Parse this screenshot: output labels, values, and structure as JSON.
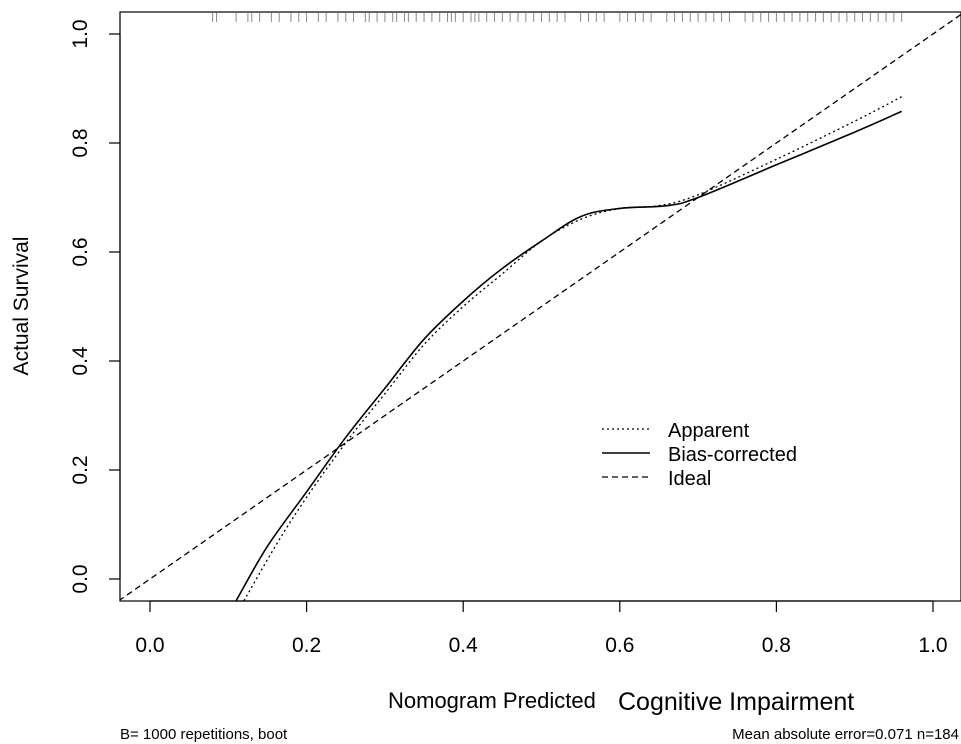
{
  "chart_data": {
    "type": "line",
    "xlabel": "Nomogram Predicted",
    "xlabel_suffix": "Cognitive Impairment",
    "ylabel": "Actual Survival",
    "xlim": [
      -0.04,
      1.04
    ],
    "ylim": [
      -0.04,
      1.04
    ],
    "x_ticks": [
      0.0,
      0.2,
      0.4,
      0.6,
      0.8,
      1.0
    ],
    "x_tick_labels": [
      "0.0",
      "0.2",
      "0.4",
      "0.6",
      "0.8",
      "1.0"
    ],
    "y_ticks": [
      0.0,
      0.2,
      0.4,
      0.6,
      0.8,
      1.0
    ],
    "y_tick_labels": [
      "0.0",
      "0.2",
      "0.4",
      "0.6",
      "0.8",
      "1.0"
    ],
    "grid": false,
    "legend_position": "center-right",
    "footnote_left": "B= 1000 repetitions, boot",
    "footnote_right": "Mean absolute error=0.071 n=184",
    "series": [
      {
        "name": "Apparent",
        "style": "dotted",
        "color": "#000000",
        "points": [
          [
            0.12,
            -0.04
          ],
          [
            0.16,
            0.06
          ],
          [
            0.2,
            0.15
          ],
          [
            0.25,
            0.25
          ],
          [
            0.3,
            0.34
          ],
          [
            0.35,
            0.43
          ],
          [
            0.4,
            0.5
          ],
          [
            0.45,
            0.56
          ],
          [
            0.5,
            0.62
          ],
          [
            0.55,
            0.66
          ],
          [
            0.6,
            0.68
          ],
          [
            0.65,
            0.685
          ],
          [
            0.7,
            0.705
          ],
          [
            0.8,
            0.77
          ],
          [
            0.9,
            0.84
          ],
          [
            0.96,
            0.885
          ]
        ]
      },
      {
        "name": "Bias-corrected",
        "style": "solid",
        "color": "#000000",
        "points": [
          [
            0.11,
            -0.04
          ],
          [
            0.15,
            0.06
          ],
          [
            0.2,
            0.16
          ],
          [
            0.25,
            0.26
          ],
          [
            0.3,
            0.35
          ],
          [
            0.35,
            0.44
          ],
          [
            0.4,
            0.51
          ],
          [
            0.45,
            0.57
          ],
          [
            0.5,
            0.62
          ],
          [
            0.55,
            0.665
          ],
          [
            0.6,
            0.68
          ],
          [
            0.66,
            0.685
          ],
          [
            0.7,
            0.7
          ],
          [
            0.8,
            0.76
          ],
          [
            0.9,
            0.82
          ],
          [
            0.96,
            0.858
          ]
        ]
      },
      {
        "name": "Ideal",
        "style": "dashed",
        "color": "#000000",
        "points": [
          [
            -0.04,
            -0.04
          ],
          [
            1.04,
            1.04
          ]
        ]
      }
    ],
    "rug_x": [
      0.08,
      0.085,
      0.11,
      0.125,
      0.13,
      0.14,
      0.155,
      0.165,
      0.18,
      0.19,
      0.2,
      0.215,
      0.225,
      0.24,
      0.25,
      0.26,
      0.275,
      0.28,
      0.29,
      0.3,
      0.31,
      0.315,
      0.325,
      0.33,
      0.34,
      0.35,
      0.36,
      0.37,
      0.38,
      0.385,
      0.39,
      0.4,
      0.41,
      0.415,
      0.42,
      0.43,
      0.44,
      0.45,
      0.46,
      0.47,
      0.48,
      0.49,
      0.5,
      0.51,
      0.52,
      0.53,
      0.55,
      0.56,
      0.57,
      0.58,
      0.6,
      0.61,
      0.62,
      0.63,
      0.64,
      0.66,
      0.67,
      0.68,
      0.69,
      0.7,
      0.71,
      0.72,
      0.73,
      0.74,
      0.76,
      0.77,
      0.78,
      0.79,
      0.8,
      0.81,
      0.82,
      0.83,
      0.84,
      0.85,
      0.86,
      0.87,
      0.88,
      0.89,
      0.9,
      0.91,
      0.92,
      0.93,
      0.94,
      0.95,
      0.96
    ]
  }
}
